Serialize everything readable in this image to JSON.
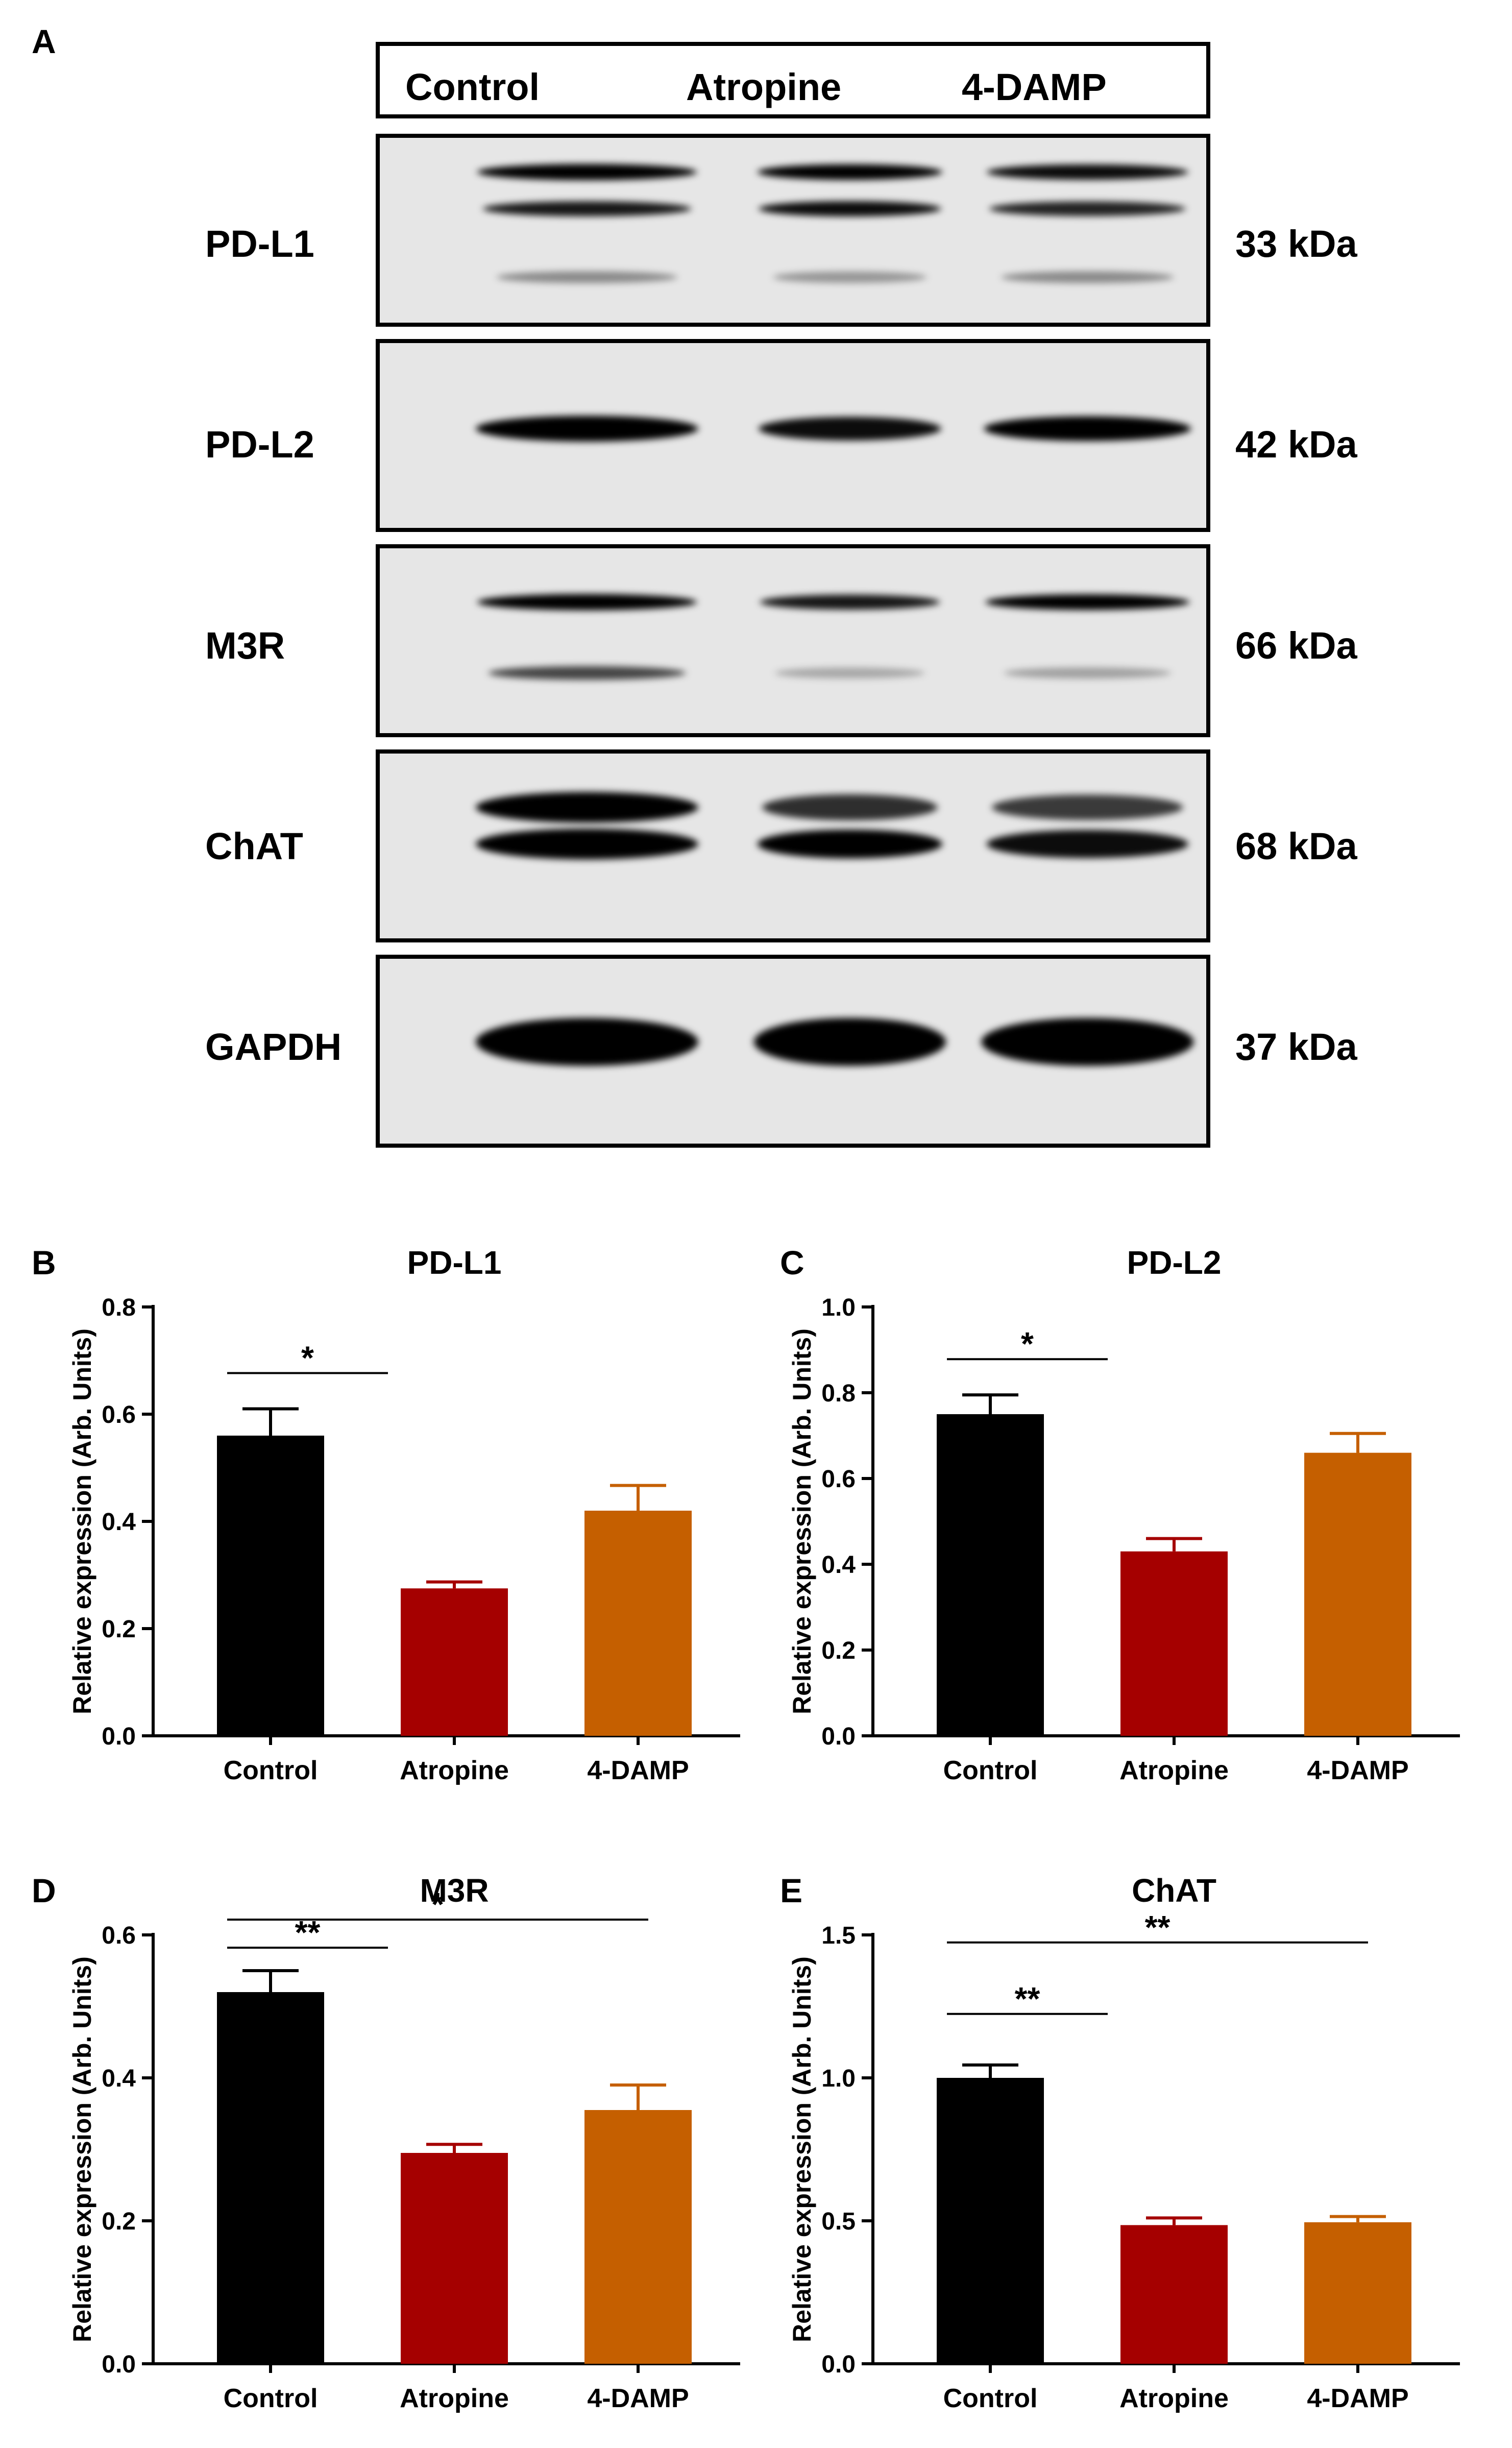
{
  "figure": {
    "panel_labels": {
      "a": "A",
      "b": "B",
      "c": "C",
      "d": "D",
      "e": "E"
    }
  },
  "blot": {
    "lanes": [
      "Control",
      "Atropine",
      "4-DAMP"
    ],
    "rows": [
      {
        "protein": "PD-L1",
        "size": "33 kDa",
        "bands": [
          [
            0.95,
            0.75,
            0.25
          ],
          [
            0.85,
            0.8,
            0.2
          ],
          [
            0.8,
            0.7,
            0.25
          ]
        ]
      },
      {
        "protein": "PD-L2",
        "size": "42 kDa",
        "bands": [
          [
            1.0
          ],
          [
            0.8
          ],
          [
            0.9
          ]
        ]
      },
      {
        "protein": "M3R",
        "size": "66 kDa",
        "bands": [
          [
            0.95,
            0.55
          ],
          [
            0.75,
            0.12
          ],
          [
            0.85,
            0.15
          ]
        ]
      },
      {
        "protein": "ChAT",
        "size": "68 kDa",
        "bands": [
          [
            1.0,
            1.0
          ],
          [
            0.65,
            0.85
          ],
          [
            0.6,
            0.8
          ]
        ]
      },
      {
        "protein": "GAPDH",
        "size": "37 kDa",
        "bands": [
          [
            1.0
          ],
          [
            1.0
          ],
          [
            1.0
          ]
        ]
      }
    ]
  },
  "colors": {
    "control": "#000000",
    "atropine": "#a50000",
    "damp": "#c55f00",
    "blot_bg": "#e6e6e6"
  },
  "chart_data": [
    {
      "panel": "B",
      "type": "bar",
      "title": "PD-L1",
      "categories": [
        "Control",
        "Atropine",
        "4-DAMP"
      ],
      "values": [
        0.56,
        0.275,
        0.42
      ],
      "errors": [
        0.05,
        0.012,
        0.047
      ],
      "ylabel": "Relative expression (Arb. Units)",
      "ylim": [
        0,
        0.8
      ],
      "yticks": [
        "0.0",
        "0.2",
        "0.4",
        "0.6",
        "0.8"
      ],
      "significance": [
        {
          "from": 0,
          "to": 1,
          "label": "*"
        }
      ]
    },
    {
      "panel": "C",
      "type": "bar",
      "title": "PD-L2",
      "categories": [
        "Control",
        "Atropine",
        "4-DAMP"
      ],
      "values": [
        0.75,
        0.43,
        0.66
      ],
      "errors": [
        0.045,
        0.03,
        0.045
      ],
      "ylabel": "Relative expression (Arb. Units)",
      "ylim": [
        0,
        1.0
      ],
      "yticks": [
        "0.0",
        "0.2",
        "0.4",
        "0.6",
        "0.8",
        "1.0"
      ],
      "significance": [
        {
          "from": 0,
          "to": 1,
          "label": "*"
        }
      ]
    },
    {
      "panel": "D",
      "type": "bar",
      "title": "M3R",
      "categories": [
        "Control",
        "Atropine",
        "4-DAMP"
      ],
      "values": [
        0.52,
        0.295,
        0.355
      ],
      "errors": [
        0.03,
        0.012,
        0.035
      ],
      "ylabel": "Relative expression (Arb. Units)",
      "ylim": [
        0,
        0.6
      ],
      "yticks": [
        "0.0",
        "0.2",
        "0.4",
        "0.6"
      ],
      "significance": [
        {
          "from": 0,
          "to": 1,
          "label": "**"
        },
        {
          "from": 0,
          "to": 2,
          "label": "*"
        }
      ]
    },
    {
      "panel": "E",
      "type": "bar",
      "title": "ChAT",
      "categories": [
        "Control",
        "Atropine",
        "4-DAMP"
      ],
      "values": [
        1.0,
        0.485,
        0.495
      ],
      "errors": [
        0.045,
        0.025,
        0.02
      ],
      "ylabel": "Relative expression (Arb. Units)",
      "ylim": [
        0,
        1.5
      ],
      "yticks": [
        "0.0",
        "0.5",
        "1.0",
        "1.5"
      ],
      "significance": [
        {
          "from": 0,
          "to": 1,
          "label": "**"
        },
        {
          "from": 0,
          "to": 2,
          "label": "**"
        }
      ]
    }
  ]
}
